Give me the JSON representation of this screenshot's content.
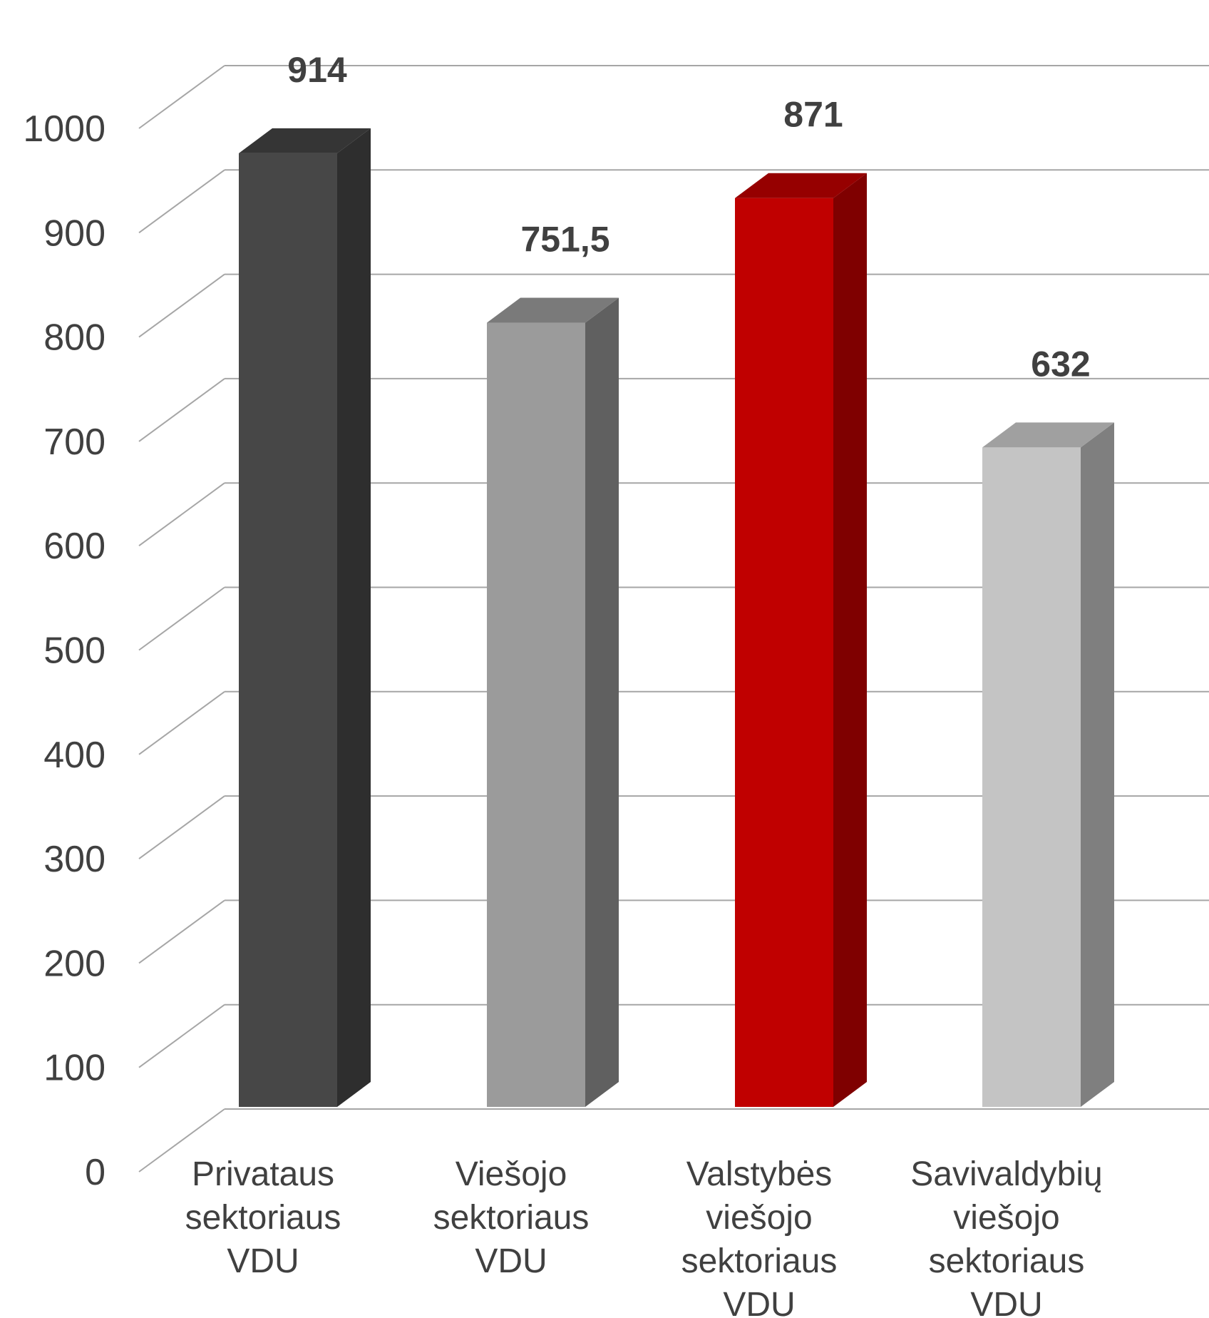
{
  "chart_data": {
    "type": "bar",
    "title": "",
    "xlabel": "",
    "ylabel": "",
    "ylim": [
      0,
      1000
    ],
    "yticks": [
      "0",
      "100",
      "200",
      "300",
      "400",
      "500",
      "600",
      "700",
      "800",
      "900",
      "1000"
    ],
    "grid": true,
    "legend": "none",
    "categories": [
      [
        "Privataus",
        "sektoriaus",
        "VDU"
      ],
      [
        "Viešojo",
        "sektoriaus",
        "VDU"
      ],
      [
        "Valstybės",
        "viešojo",
        "sektoriaus",
        "VDU"
      ],
      [
        "Savivaldybių",
        "viešojo",
        "sektoriaus",
        "VDU"
      ]
    ],
    "values": [
      914,
      751.5,
      871,
      632
    ],
    "value_labels": [
      "914",
      "751,5",
      "871",
      "632"
    ],
    "colors": [
      {
        "front": "#474747",
        "side": "#2e2e2e",
        "top": "#353535"
      },
      {
        "front": "#9b9b9b",
        "side": "#606060",
        "top": "#7a7a7a"
      },
      {
        "front": "#c00000",
        "side": "#7f0000",
        "top": "#960000"
      },
      {
        "front": "#c4c4c4",
        "side": "#7f7f7f",
        "top": "#a0a0a0"
      }
    ]
  }
}
